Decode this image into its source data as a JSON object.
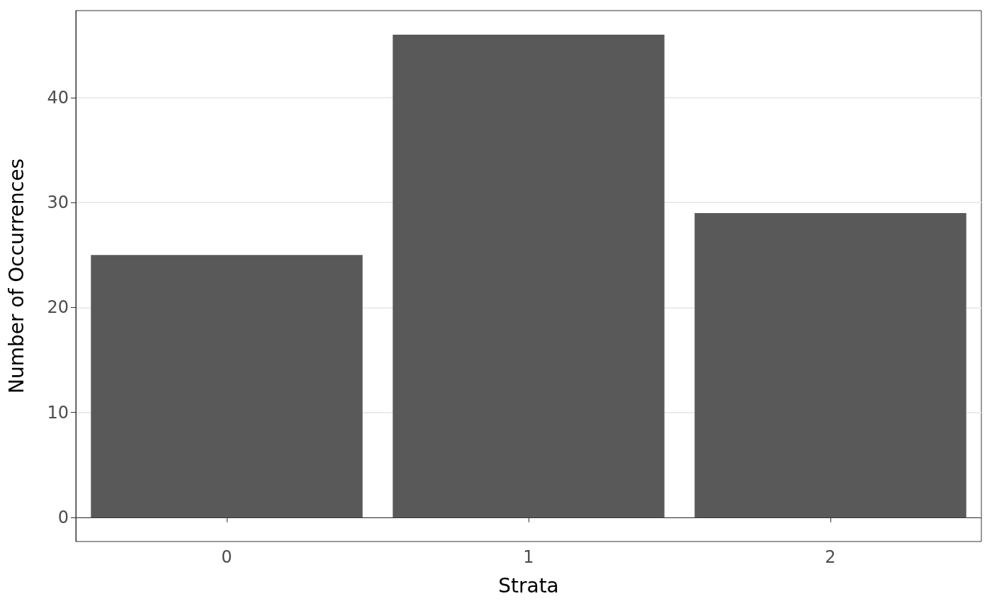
{
  "chart_data": {
    "type": "bar",
    "xlabel": "Strata",
    "ylabel": "Number of Occurrences",
    "categories": [
      "0",
      "1",
      "2"
    ],
    "values": [
      25,
      46,
      29
    ],
    "color": "#595959",
    "ylim": [
      -2.3,
      48.3
    ],
    "yticks": [
      0,
      10,
      20,
      30,
      40
    ],
    "grid": "y"
  }
}
